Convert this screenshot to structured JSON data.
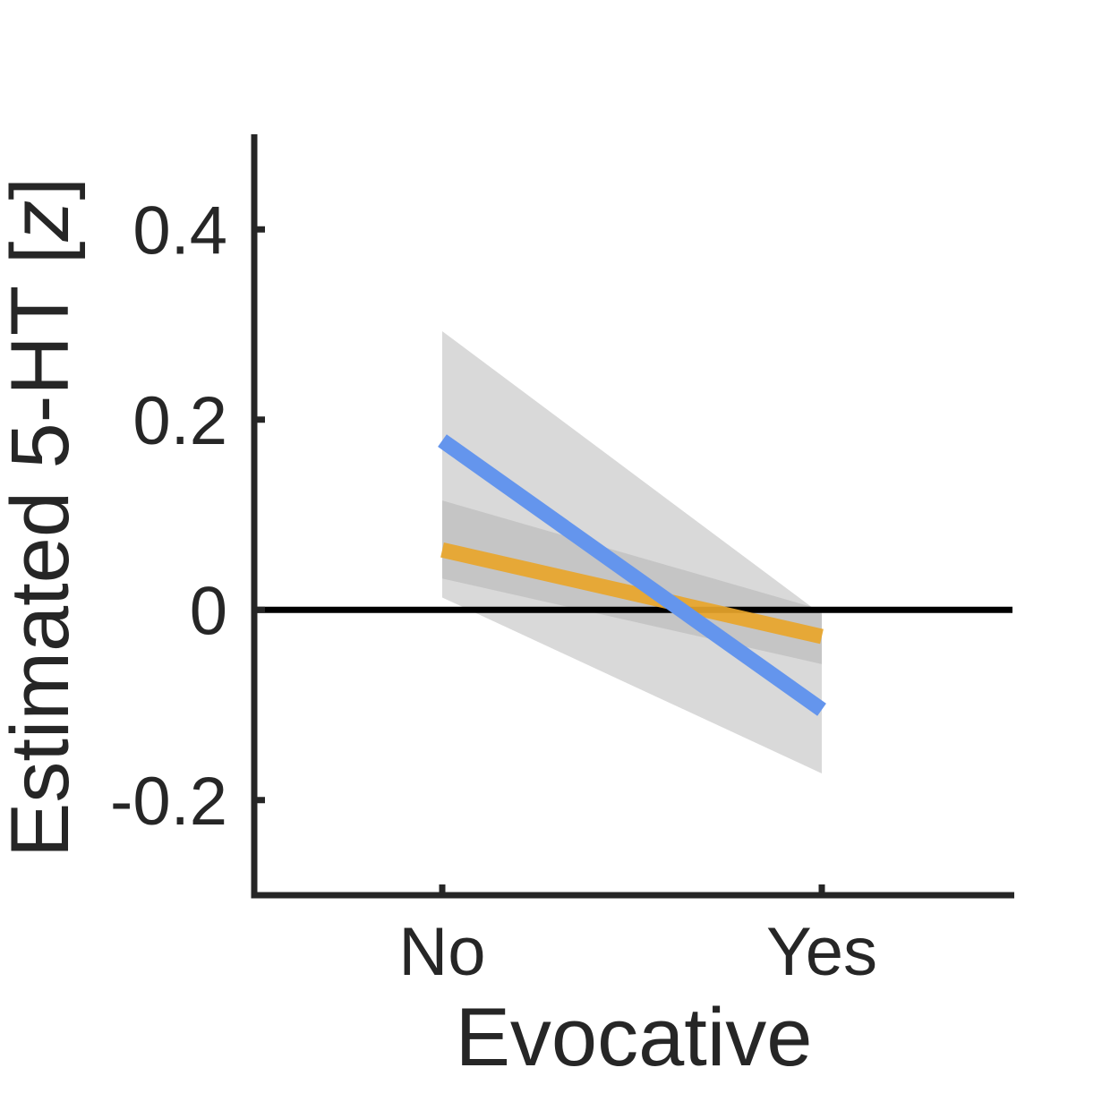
{
  "chart_data": {
    "type": "line",
    "categories": [
      "No",
      "Yes"
    ],
    "xlabel": "Evocative",
    "ylabel_parts": [
      "Estimated 5-HT [",
      "z",
      "]"
    ],
    "ylim": [
      -0.3,
      0.5
    ],
    "yticks": [
      -0.2,
      0,
      0.2,
      0.4
    ],
    "ytick_labels": [
      "-0.2",
      "0",
      "0.2",
      "0.4"
    ],
    "reference_line": 0,
    "grid": false,
    "colors": {
      "axis": "#262626",
      "reference": "#000000",
      "band_wide": "#d9d9d9",
      "band_narrow": "#bdbdbd"
    },
    "series": [
      {
        "values": [
          0.178,
          -0.105
        ],
        "ci_lower": [
          0.013,
          -0.172
        ],
        "ci_upper": [
          0.293,
          -0.005
        ],
        "color": "#6495ed",
        "band": "band_wide"
      },
      {
        "values": [
          0.063,
          -0.028
        ],
        "ci_lower": [
          0.033,
          -0.057
        ],
        "ci_upper": [
          0.115,
          0.0
        ],
        "color": "#e8a52a",
        "band": "band_narrow"
      }
    ]
  }
}
